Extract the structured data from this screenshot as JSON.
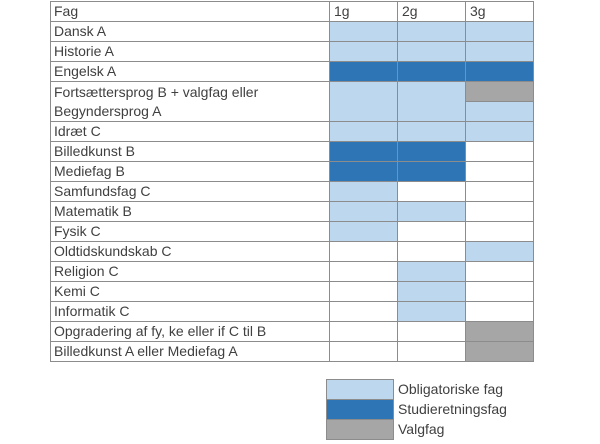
{
  "header": {
    "subject_label": "Fag",
    "years": [
      "1g",
      "2g",
      "3g"
    ]
  },
  "subjects": [
    {
      "name": "Dansk A",
      "cells": [
        "o",
        "o",
        "o"
      ]
    },
    {
      "name": "Historie A",
      "cells": [
        "o",
        "o",
        "o"
      ]
    },
    {
      "name": "Engelsk A",
      "cells": [
        "s",
        "s",
        "s"
      ]
    },
    {
      "name": "Fortsættersprog B + valgfag eller Begyndersprog A",
      "name_line1": "Fortsættersprog B + valgfag eller",
      "name_line2": "Begyndersprog A",
      "cells": [
        "o",
        "o",
        "v/o"
      ]
    },
    {
      "name": "Idræt C",
      "cells": [
        "o",
        "o",
        "o"
      ]
    },
    {
      "name": "Billedkunst B",
      "cells": [
        "s",
        "s",
        "e"
      ]
    },
    {
      "name": "Mediefag B",
      "cells": [
        "s",
        "s",
        "e"
      ]
    },
    {
      "name": "Samfundsfag C",
      "cells": [
        "o",
        "e",
        "e"
      ]
    },
    {
      "name": "Matematik B",
      "cells": [
        "o",
        "o",
        "e"
      ]
    },
    {
      "name": "Fysik C",
      "cells": [
        "o",
        "e",
        "e"
      ]
    },
    {
      "name": "Oldtidskundskab C",
      "cells": [
        "e",
        "e",
        "o"
      ]
    },
    {
      "name": "Religion C",
      "cells": [
        "e",
        "o",
        "e"
      ]
    },
    {
      "name": "Kemi C",
      "cells": [
        "e",
        "o",
        "e"
      ]
    },
    {
      "name": "Informatik C",
      "cells": [
        "e",
        "o",
        "e"
      ]
    },
    {
      "name": "Opgradering af fy, ke eller if C til B",
      "cells": [
        "e",
        "e",
        "v"
      ]
    },
    {
      "name": "Billedkunst A eller Mediefag A",
      "cells": [
        "e",
        "e",
        "v"
      ]
    }
  ],
  "legend": [
    {
      "label": "Obligatoriske fag",
      "color": "#bdd7ee"
    },
    {
      "label": "Studieretningsfag",
      "color": "#2e75b6"
    },
    {
      "label": "Valgfag",
      "color": "#a6a6a6"
    }
  ],
  "colors": {
    "obligatorisk": "#bdd7ee",
    "studieretning": "#2e75b6",
    "valgfag": "#a6a6a6",
    "border": "#8c8c8c",
    "text": "#404040"
  }
}
